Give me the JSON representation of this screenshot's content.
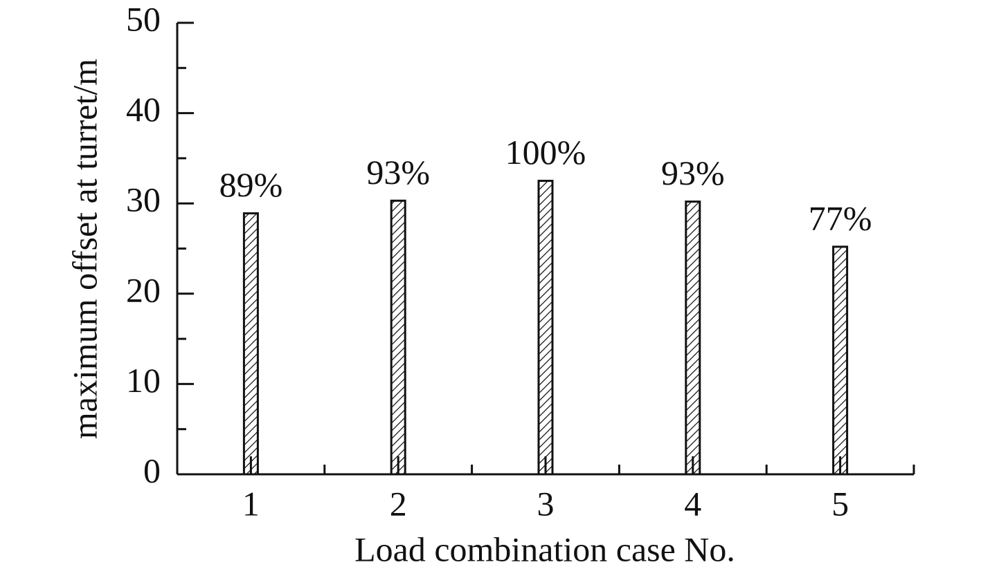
{
  "chart_data": {
    "type": "bar",
    "x_label": "Load combination case No.",
    "y_label": "maximum offset at turret/m",
    "categories": [
      "1",
      "2",
      "3",
      "4",
      "5"
    ],
    "values": [
      28.9,
      30.3,
      32.5,
      30.2,
      25.2
    ],
    "annotations": [
      "89%",
      "93%",
      "100%",
      "93%",
      "77%"
    ],
    "color": "#111111",
    "hatch": true,
    "ylim": [
      0,
      50
    ],
    "yticks": [
      0,
      10,
      20,
      30,
      40,
      50
    ],
    "yminor_ticks": [
      5,
      15,
      25,
      35,
      45
    ],
    "grid": false
  }
}
